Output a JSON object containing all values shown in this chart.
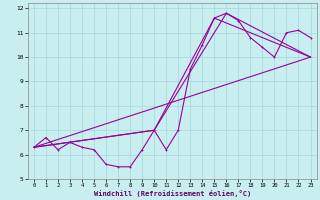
{
  "xlabel": "Windchill (Refroidissement éolien,°C)",
  "background_color": "#c8eef0",
  "line_color": "#990099",
  "grid_color": "#a8dde0",
  "xlim": [
    -0.5,
    23.5
  ],
  "ylim": [
    5.0,
    12.2
  ],
  "yticks": [
    5,
    6,
    7,
    8,
    9,
    10,
    11,
    12
  ],
  "xticks": [
    0,
    1,
    2,
    3,
    4,
    5,
    6,
    7,
    8,
    9,
    10,
    11,
    12,
    13,
    14,
    15,
    16,
    17,
    18,
    19,
    20,
    21,
    22,
    23
  ],
  "line1_x": [
    0,
    1,
    2,
    3,
    4,
    5,
    6,
    7,
    8,
    9,
    10,
    11,
    12,
    13,
    14,
    15,
    16,
    17,
    18,
    19,
    20,
    21,
    22,
    23
  ],
  "line1_y": [
    6.3,
    6.7,
    6.2,
    6.5,
    6.3,
    6.2,
    5.6,
    5.5,
    5.5,
    6.2,
    7.0,
    6.2,
    7.0,
    9.5,
    10.5,
    11.6,
    11.8,
    11.5,
    10.8,
    10.4,
    10.0,
    11.0,
    11.1,
    10.8
  ],
  "line2_x": [
    0,
    23
  ],
  "line2_y": [
    6.3,
    10.0
  ],
  "line3_x": [
    0,
    10,
    15,
    23
  ],
  "line3_y": [
    6.3,
    7.0,
    11.6,
    10.0
  ],
  "line4_x": [
    0,
    10,
    16,
    23
  ],
  "line4_y": [
    6.3,
    7.0,
    11.8,
    10.0
  ]
}
